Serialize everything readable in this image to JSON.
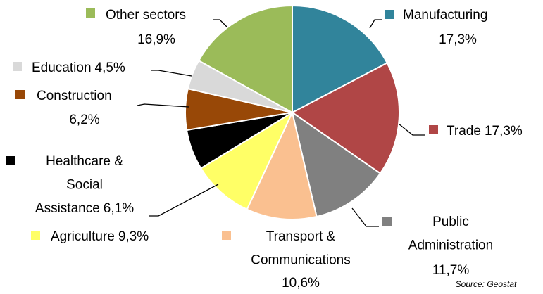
{
  "chart_data": {
    "type": "pie",
    "categories": [
      "Manufacturing",
      "Trade",
      "Public Administration",
      "Transport & Communications",
      "Agriculture",
      "Healthcare & Social Assistance",
      "Construction",
      "Education",
      "Other sectors"
    ],
    "values": [
      17.3,
      17.3,
      11.7,
      10.6,
      9.3,
      6.1,
      6.2,
      4.5,
      16.9
    ],
    "value_labels": [
      "17,3%",
      "17,3%",
      "11,7%",
      "10,6%",
      "9,3%",
      "6,1%",
      "6,2%",
      "4,5%",
      "16,9%"
    ],
    "colors": [
      "#31849b",
      "#b04646",
      "#808080",
      "#fac090",
      "#ffff66",
      "#000000",
      "#984807",
      "#d9d9d9",
      "#9bbb59"
    ],
    "source": "Source: Geostat"
  }
}
